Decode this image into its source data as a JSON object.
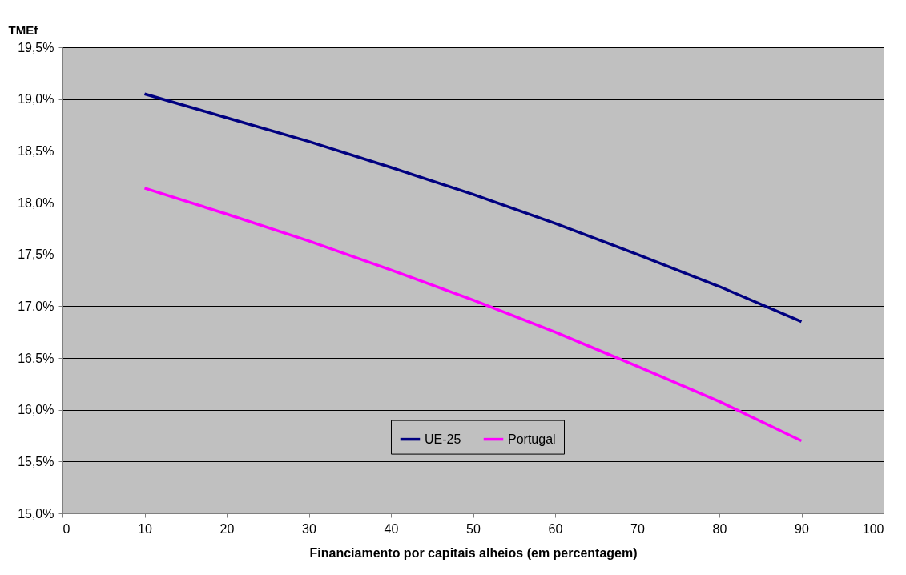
{
  "chart_data": {
    "type": "line",
    "xlabel": "Financiamento por capitais alheios (em percentagem)",
    "ylabel": "TMEf",
    "x": [
      10,
      20,
      30,
      40,
      50,
      60,
      70,
      80,
      90
    ],
    "series": [
      {
        "name": "UE-25",
        "color": "#000080",
        "values": [
          19.05,
          18.82,
          18.59,
          18.34,
          18.08,
          17.8,
          17.5,
          17.19,
          16.85
        ]
      },
      {
        "name": "Portugal",
        "color": "#ff00ff",
        "values": [
          18.14,
          17.89,
          17.63,
          17.35,
          17.06,
          16.75,
          16.42,
          16.08,
          15.7
        ]
      }
    ],
    "xlim": [
      0,
      100
    ],
    "xticks": [
      0,
      10,
      20,
      30,
      40,
      50,
      60,
      70,
      80,
      90,
      100
    ],
    "ylim": [
      15,
      19.5
    ],
    "yticks": [
      {
        "value": 15,
        "label": "15,0%"
      },
      {
        "value": 15.5,
        "label": "15,5%"
      },
      {
        "value": 16,
        "label": "16,0%"
      },
      {
        "value": 16.5,
        "label": "16,5%"
      },
      {
        "value": 17,
        "label": "17,0%"
      },
      {
        "value": 17.5,
        "label": "17,5%"
      },
      {
        "value": 18,
        "label": "18,0%"
      },
      {
        "value": 18.5,
        "label": "18,5%"
      },
      {
        "value": 19,
        "label": "19,0%"
      },
      {
        "value": 19.5,
        "label": "19,5%"
      }
    ],
    "grid": "y",
    "legend": "bottom",
    "marker": "none",
    "line_style": "solid"
  }
}
